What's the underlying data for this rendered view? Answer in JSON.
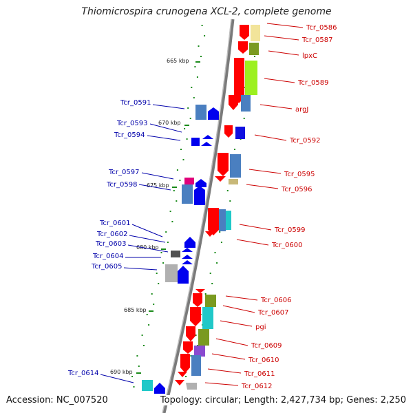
{
  "title": "Thiomicrospira crunogena XCL-2, complete genome",
  "accession": "Accession: NC_007520",
  "summary": "Topology: circular; Length: 2,427,734 bp; Genes: 2,250",
  "ticks": [
    "665 kbp",
    "670 kbp",
    "675 kbp",
    "680 kbp",
    "685 kbp",
    "690 kbp"
  ],
  "genes_right": [
    "Tcr_0586",
    "Tcr_0587",
    "lpxC",
    "Tcr_0589",
    "argJ",
    "Tcr_0592",
    "Tcr_0595",
    "Tcr_0596",
    "Tcr_0599",
    "Tcr_0600",
    "Tcr_0606",
    "Tcr_0607",
    "pgi",
    "Tcr_0609",
    "Tcr_0610",
    "Tcr_0611",
    "Tcr_0612"
  ],
  "genes_left": [
    "Tcr_0591",
    "Tcr_0593",
    "Tcr_0594",
    "Tcr_0597",
    "Tcr_0598",
    "Tcr_0601",
    "Tcr_0602",
    "Tcr_0603",
    "Tcr_0604",
    "Tcr_0605",
    "Tcr_0614"
  ],
  "colors": {
    "forward_label": "#cc0000",
    "reverse_label": "#0000aa",
    "forward_gene": "#ff0000",
    "reverse_gene": "#0000ee",
    "backbone": "#808080",
    "gc_dots": "#1a8a1a"
  }
}
